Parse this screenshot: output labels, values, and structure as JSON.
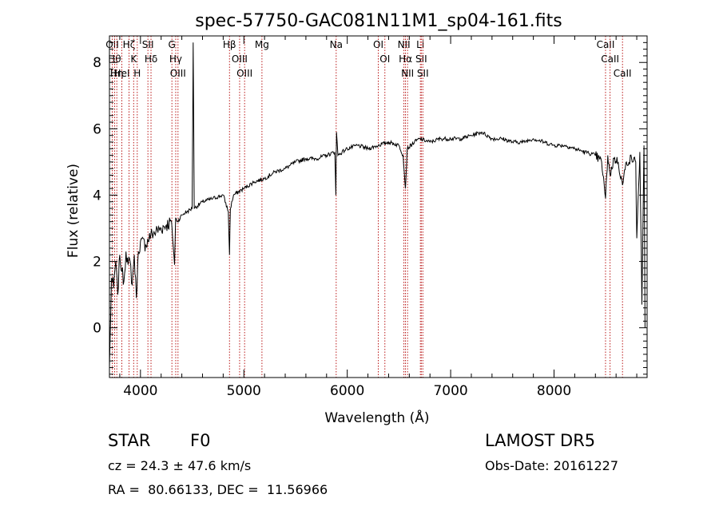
{
  "chart_data": {
    "type": "line",
    "title": "spec-57750-GAC081N11M1_sp04-161.fits",
    "xlabel": "Wavelength (Å)",
    "ylabel": "Flux (relative)",
    "xlim": [
      3700,
      8900
    ],
    "ylim": [
      -1.5,
      8.8
    ],
    "x_ticks": [
      4000,
      5000,
      6000,
      7000,
      8000
    ],
    "y_ticks": [
      0,
      2,
      4,
      6,
      8
    ],
    "grid": false,
    "series": [
      {
        "x": [
          3700,
          3720,
          3740,
          3760,
          3780,
          3800,
          3820,
          3840,
          3860,
          3880,
          3900,
          3920,
          3940,
          3960,
          3980,
          4000,
          4050,
          4100,
          4150,
          4200,
          4250,
          4300,
          4330,
          4340,
          4360,
          4400,
          4450,
          4500,
          4510,
          4520,
          4600,
          4700,
          4800,
          4850,
          4861,
          4870,
          4900,
          5000,
          5100,
          5200,
          5300,
          5400,
          5500,
          5600,
          5700,
          5800,
          5880,
          5890,
          5896,
          5910,
          5950,
          6000,
          6100,
          6200,
          6300,
          6400,
          6500,
          6540,
          6563,
          6580,
          6650,
          6700,
          6800,
          6900,
          7000,
          7100,
          7200,
          7300,
          7400,
          7500,
          7600,
          7700,
          7800,
          7900,
          8000,
          8100,
          8200,
          8300,
          8400,
          8460,
          8498,
          8520,
          8542,
          8580,
          8620,
          8662,
          8700,
          8750,
          8790,
          8800,
          8830,
          8850,
          8870,
          8880
        ],
        "y": [
          -1.2,
          1.5,
          1.2,
          2.0,
          1.0,
          2.2,
          1.7,
          1.4,
          2.3,
          1.9,
          2.0,
          1.3,
          2.2,
          0.9,
          2.3,
          2.6,
          2.5,
          2.8,
          2.9,
          3.0,
          3.1,
          3.2,
          1.9,
          3.3,
          3.2,
          3.4,
          3.5,
          3.6,
          8.6,
          3.6,
          3.8,
          3.9,
          4.0,
          3.5,
          2.2,
          3.6,
          4.0,
          4.2,
          4.4,
          4.5,
          4.7,
          4.8,
          5.0,
          5.1,
          5.1,
          5.2,
          5.3,
          4.0,
          5.9,
          5.2,
          5.3,
          5.4,
          5.5,
          5.4,
          5.5,
          5.6,
          5.5,
          5.2,
          4.2,
          5.4,
          5.6,
          5.7,
          5.6,
          5.7,
          5.7,
          5.7,
          5.8,
          5.9,
          5.7,
          5.7,
          5.6,
          5.6,
          5.7,
          5.6,
          5.5,
          5.5,
          5.4,
          5.3,
          5.2,
          5.0,
          3.9,
          5.2,
          4.6,
          5.1,
          5.0,
          4.3,
          5.0,
          5.1,
          5.0,
          2.7,
          5.3,
          0.7,
          5.5,
          0.0
        ]
      }
    ],
    "line_markers": [
      {
        "x": 3727,
        "label": "OII"
      },
      {
        "x": 3750,
        "label": "Hθ"
      },
      {
        "x": 3771,
        "label": "Hη"
      },
      {
        "x": 3820,
        "label": "HeI"
      },
      {
        "x": 3889,
        "label": "Hζ"
      },
      {
        "x": 3934,
        "label": "K"
      },
      {
        "x": 3969,
        "label": "H"
      },
      {
        "x": 4072,
        "label": "SII"
      },
      {
        "x": 4102,
        "label": "Hδ"
      },
      {
        "x": 4304,
        "label": "G"
      },
      {
        "x": 4341,
        "label": "Hγ"
      },
      {
        "x": 4363,
        "label": "OIII"
      },
      {
        "x": 4861,
        "label": "Hβ"
      },
      {
        "x": 4959,
        "label": "OIII"
      },
      {
        "x": 5007,
        "label": "OIII"
      },
      {
        "x": 5175,
        "label": "Mg"
      },
      {
        "x": 5893,
        "label": "Na"
      },
      {
        "x": 6300,
        "label": "OI"
      },
      {
        "x": 6364,
        "label": "OI"
      },
      {
        "x": 6548,
        "label": "NII"
      },
      {
        "x": 6563,
        "label": "Hα"
      },
      {
        "x": 6583,
        "label": "NII"
      },
      {
        "x": 6707,
        "label": "Li"
      },
      {
        "x": 6716,
        "label": "SII"
      },
      {
        "x": 6731,
        "label": "SII"
      },
      {
        "x": 8498,
        "label": "CaII"
      },
      {
        "x": 8542,
        "label": "CaII"
      },
      {
        "x": 8662,
        "label": "CaII"
      }
    ]
  },
  "annotations": {
    "class": "STAR",
    "subclass": "F0",
    "survey": "LAMOST DR5",
    "redshift": "cz = 24.3 ± 47.6 km/s",
    "obs_date": "Obs-Date: 20161227",
    "coords": "RA =  80.66133, DEC =  11.56966"
  }
}
